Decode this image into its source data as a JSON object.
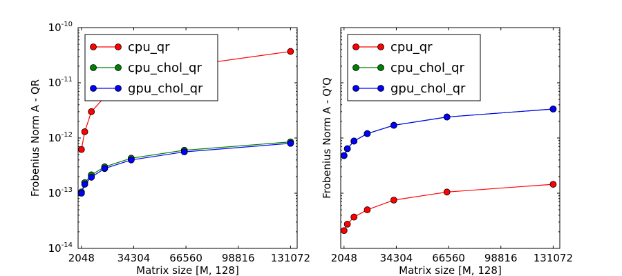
{
  "chart_data": [
    {
      "type": "line",
      "panel": "left",
      "xlabel": "Matrix size [M, 128]",
      "ylabel": "Frobenius Norm A - QR",
      "yscale": "log",
      "ylim": [
        1e-14,
        1e-10
      ],
      "xlim": [
        0,
        135168
      ],
      "xticks": [
        2048,
        34304,
        66560,
        98816,
        131072
      ],
      "xtick_labels": [
        "2048",
        "34304",
        "66560",
        "98816",
        "131072"
      ],
      "yticks": [
        1e-14,
        1e-13,
        1e-12,
        1e-11,
        1e-10
      ],
      "ytick_labels": [
        {
          "base": "10",
          "exp": "-14"
        },
        {
          "base": "10",
          "exp": "-13"
        },
        {
          "base": "10",
          "exp": "-12"
        },
        {
          "base": "10",
          "exp": "-11"
        },
        {
          "base": "10",
          "exp": "-10"
        }
      ],
      "legend": "top-left",
      "grid": false,
      "series": [
        {
          "name": "cpu_qr",
          "color": "#ff0000",
          "x": [
            2048,
            4096,
            8192,
            16384,
            32768,
            65536,
            131072
          ],
          "y": [
            6.2e-13,
            1.3e-12,
            3e-12,
            5.5e-12,
            1e-11,
            2e-11,
            3.7e-11
          ]
        },
        {
          "name": "cpu_chol_qr",
          "color": "#008000",
          "x": [
            2048,
            4096,
            8192,
            16384,
            32768,
            65536,
            131072
          ],
          "y": [
            1.05e-13,
            1.55e-13,
            2.15e-13,
            3e-13,
            4.3e-13,
            6e-13,
            8.5e-13
          ]
        },
        {
          "name": "gpu_chol_qr",
          "color": "#0000ff",
          "x": [
            2048,
            4096,
            8192,
            16384,
            32768,
            65536,
            131072
          ],
          "y": [
            1e-13,
            1.45e-13,
            1.95e-13,
            2.8e-13,
            4e-13,
            5.6e-13,
            8e-13
          ]
        }
      ]
    },
    {
      "type": "line",
      "panel": "right",
      "xlabel": "Matrix size [M, 128]",
      "ylabel": "Frobenius Norm A - Q'Q",
      "yscale": "log",
      "ylim": [
        1e-14,
        1e-10
      ],
      "xlim": [
        0,
        135168
      ],
      "xticks": [
        2048,
        34304,
        66560,
        98816,
        131072
      ],
      "xtick_labels": [
        "2048",
        "34304",
        "66560",
        "98816",
        "131072"
      ],
      "yticks": [],
      "ytick_labels": [],
      "legend": "top-left",
      "grid": false,
      "series": [
        {
          "name": "cpu_qr",
          "color": "#ff0000",
          "x": [
            2048,
            4096,
            8192,
            16384,
            32768,
            65536,
            131072
          ],
          "y": [
            2.1e-14,
            2.75e-14,
            3.7e-14,
            5e-14,
            7.5e-14,
            1.05e-13,
            1.45e-13
          ]
        },
        {
          "name": "cpu_chol_qr",
          "color": "#008000",
          "x": [
            2048,
            4096,
            8192,
            16384,
            32768,
            65536,
            131072
          ],
          "y": [
            4.8e-13,
            6.4e-13,
            8.8e-13,
            1.2e-12,
            1.7e-12,
            2.4e-12,
            3.35e-12
          ]
        },
        {
          "name": "gpu_chol_qr",
          "color": "#0000ff",
          "x": [
            2048,
            4096,
            8192,
            16384,
            32768,
            65536,
            131072
          ],
          "y": [
            4.8e-13,
            6.4e-13,
            8.8e-13,
            1.2e-12,
            1.7e-12,
            2.4e-12,
            3.35e-12
          ]
        }
      ]
    }
  ]
}
